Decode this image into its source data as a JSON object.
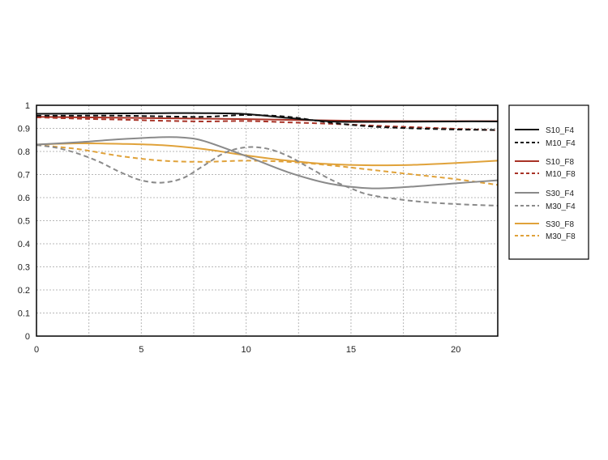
{
  "chart_data": {
    "type": "line",
    "title": "",
    "xlabel": "",
    "ylabel": "",
    "xlim": [
      0,
      22
    ],
    "ylim": [
      0,
      1
    ],
    "xticks": [
      0,
      5,
      10,
      15,
      20
    ],
    "yticks": [
      0,
      0.1,
      0.2,
      0.3,
      0.4,
      0.5,
      0.6,
      0.7,
      0.8,
      0.9,
      1
    ],
    "xtick_labels": [
      "0",
      "5",
      "10",
      "15",
      "20"
    ],
    "ytick_labels": [
      "0",
      "0.1",
      "0.2",
      "0.3",
      "0.4",
      "0.5",
      "0.6",
      "0.7",
      "0.8",
      "0.9",
      "1"
    ],
    "grid": true,
    "legend_position": "right",
    "series": [
      {
        "name": "S10_F4",
        "color": "#111111",
        "dash": "solid",
        "x": [
          0,
          2,
          4,
          6,
          8,
          10,
          12,
          14,
          16,
          18,
          20,
          22
        ],
        "y": [
          0.963,
          0.964,
          0.965,
          0.966,
          0.966,
          0.962,
          0.945,
          0.93,
          0.928,
          0.929,
          0.93,
          0.93
        ]
      },
      {
        "name": "M10_F4",
        "color": "#111111",
        "dash": "dashed",
        "x": [
          0,
          2,
          4,
          6,
          8,
          10,
          12,
          14,
          16,
          18,
          20,
          22
        ],
        "y": [
          0.955,
          0.955,
          0.955,
          0.952,
          0.95,
          0.958,
          0.95,
          0.925,
          0.908,
          0.9,
          0.895,
          0.893
        ]
      },
      {
        "name": "S10_F8",
        "color": "#a83226",
        "dash": "solid",
        "x": [
          0,
          2,
          4,
          6,
          8,
          10,
          12,
          14,
          16,
          18,
          20,
          22
        ],
        "y": [
          0.95,
          0.948,
          0.946,
          0.944,
          0.942,
          0.94,
          0.937,
          0.934,
          0.932,
          0.931,
          0.931,
          0.931
        ]
      },
      {
        "name": "M10_F8",
        "color": "#a83226",
        "dash": "dashed",
        "x": [
          0,
          2,
          4,
          6,
          8,
          10,
          12,
          14,
          16,
          18,
          20,
          22
        ],
        "y": [
          0.948,
          0.942,
          0.938,
          0.933,
          0.93,
          0.932,
          0.926,
          0.92,
          0.912,
          0.905,
          0.898,
          0.892
        ]
      },
      {
        "name": "S30_F4",
        "color": "#8a8a8a",
        "dash": "solid",
        "x": [
          0,
          2,
          4,
          6,
          7,
          8,
          10,
          12,
          14,
          16,
          18,
          20,
          22
        ],
        "y": [
          0.83,
          0.84,
          0.853,
          0.862,
          0.86,
          0.845,
          0.78,
          0.71,
          0.66,
          0.64,
          0.648,
          0.662,
          0.675
        ]
      },
      {
        "name": "M30_F4",
        "color": "#8a8a8a",
        "dash": "dashed",
        "x": [
          0,
          1,
          2,
          3,
          4,
          5,
          6,
          7,
          8,
          9,
          10,
          11,
          12,
          13,
          14,
          15,
          16,
          18,
          20,
          22
        ],
        "y": [
          0.828,
          0.815,
          0.79,
          0.755,
          0.71,
          0.675,
          0.665,
          0.685,
          0.74,
          0.795,
          0.818,
          0.812,
          0.78,
          0.73,
          0.68,
          0.64,
          0.61,
          0.585,
          0.572,
          0.565
        ]
      },
      {
        "name": "S30_F8",
        "color": "#e0a23a",
        "dash": "solid",
        "x": [
          0,
          2,
          4,
          6,
          8,
          10,
          12,
          14,
          16,
          18,
          20,
          22
        ],
        "y": [
          0.83,
          0.835,
          0.833,
          0.827,
          0.81,
          0.783,
          0.76,
          0.745,
          0.74,
          0.742,
          0.75,
          0.76
        ]
      },
      {
        "name": "M30_F8",
        "color": "#e0a23a",
        "dash": "dashed",
        "x": [
          0,
          2,
          4,
          6,
          8,
          10,
          12,
          14,
          16,
          18,
          20,
          22
        ],
        "y": [
          0.828,
          0.81,
          0.78,
          0.76,
          0.755,
          0.76,
          0.755,
          0.74,
          0.72,
          0.7,
          0.68,
          0.655
        ]
      }
    ]
  }
}
